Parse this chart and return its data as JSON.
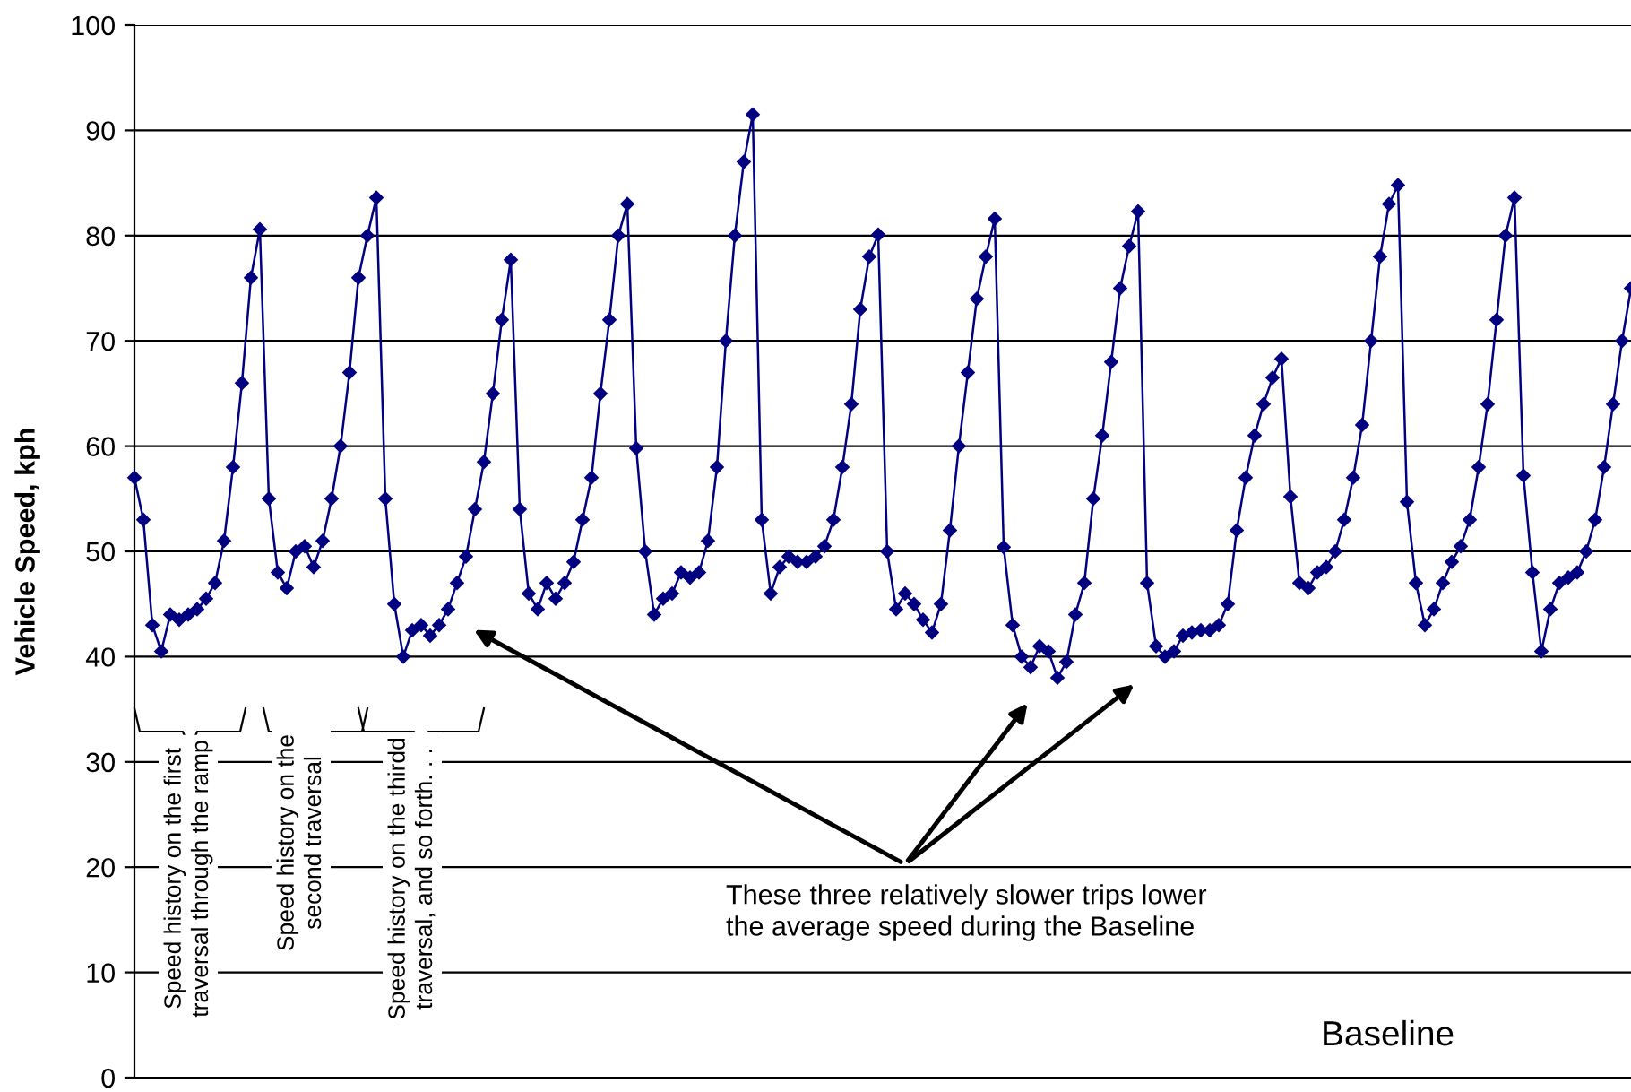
{
  "chart_data": {
    "type": "line",
    "ylabel": "Vehicle Speed, kph",
    "categories": [
      null,
      null,
      null,
      null,
      null,
      null,
      null,
      null,
      null,
      null,
      null,
      null,
      null,
      null,
      null,
      null,
      null,
      null,
      null,
      null,
      null,
      null,
      null,
      null,
      null,
      null,
      null,
      null,
      null,
      null,
      null,
      null,
      null,
      null,
      null,
      null,
      null,
      null,
      null,
      null,
      null,
      null,
      null,
      null,
      null,
      null,
      null,
      null,
      null,
      null,
      null,
      null,
      null,
      null,
      null,
      null,
      null,
      null,
      null,
      null,
      null,
      null,
      null,
      null,
      null,
      null,
      null,
      null,
      null,
      null,
      null,
      null,
      null,
      null,
      null,
      null,
      null,
      null,
      null,
      null,
      null,
      null,
      null,
      null,
      null,
      null,
      null,
      null,
      null,
      null,
      null,
      null,
      null,
      null,
      null,
      null,
      null,
      null,
      null,
      null,
      null,
      null,
      null,
      null,
      null,
      null,
      null,
      null,
      null,
      null,
      null,
      null,
      null,
      null,
      null,
      null,
      null,
      null,
      null,
      null,
      null,
      null,
      null,
      null,
      null,
      null,
      null,
      null,
      null,
      null,
      null,
      null,
      null,
      null,
      null,
      null,
      null,
      null,
      null,
      null,
      null,
      null,
      null,
      null,
      null,
      null,
      null,
      null,
      null,
      null,
      null,
      null,
      null,
      null,
      null,
      null,
      null,
      null,
      null,
      null,
      null,
      null,
      null,
      null,
      null,
      null,
      null,
      null
    ],
    "series": [
      {
        "color": "#000080",
        "values": [
          57,
          53,
          43,
          40.5,
          44,
          43.5,
          44,
          44.5,
          45.5,
          47,
          51,
          58,
          66,
          76,
          80.6,
          55,
          48,
          46.5,
          50,
          50.5,
          48.5,
          51,
          55,
          60,
          67,
          76,
          80,
          83.6,
          55,
          45,
          40,
          42.5,
          43,
          42,
          43,
          44.5,
          47,
          49.5,
          54,
          58.5,
          65,
          72,
          77.7,
          54,
          46,
          44.5,
          47,
          45.5,
          47,
          49,
          53,
          57,
          65,
          72,
          80,
          83,
          59.8,
          50,
          44,
          45.5,
          46,
          48,
          47.5,
          48,
          51,
          58,
          70,
          80,
          87,
          91.5,
          53,
          46,
          48.5,
          49.5,
          49,
          49,
          49.5,
          50.5,
          53,
          58,
          64,
          73,
          78,
          80.1,
          50,
          44.5,
          46,
          45,
          43.5,
          42.3,
          45,
          52,
          60,
          67,
          74,
          78,
          81.6,
          50.4,
          43,
          40,
          39,
          41,
          40.5,
          38,
          39.5,
          44,
          47,
          55,
          61,
          68,
          75,
          79,
          82.3,
          47,
          41,
          40,
          40.5,
          42,
          42.3,
          42.5,
          42.5,
          43,
          45,
          52,
          57,
          61,
          64,
          66.5,
          68.3,
          55.2,
          47,
          46.5,
          48,
          48.5,
          50,
          53,
          57,
          62,
          70,
          78,
          83,
          84.8,
          54.7,
          47,
          43,
          44.5,
          47,
          49,
          50.5,
          53,
          58,
          64,
          72,
          80,
          83.6,
          57.2,
          48,
          40.5,
          44.5,
          47,
          47.5,
          48,
          50,
          53,
          58,
          64,
          70,
          75
        ]
      }
    ],
    "ylim": [
      0,
      100
    ],
    "yticks": [
      0,
      10,
      20,
      30,
      40,
      50,
      60,
      70,
      80,
      90,
      100
    ],
    "grid": "y",
    "marker": "diamond",
    "line_style": "solid",
    "tick_labels": "y",
    "annotations": [
      "Speed history on the first\ntraversal through the ramp",
      "Speed history on the\nsecond traversal",
      "Speed history on the thirdd\ntraversal, and so forth. . .",
      "These three relatively slower trips lower\nthe average speed during the Baseline",
      "Baseline"
    ]
  }
}
